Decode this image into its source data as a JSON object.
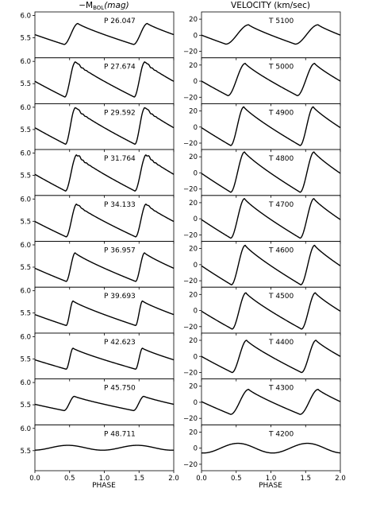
{
  "chart_data": {
    "type": "line",
    "x_label": "PHASE",
    "x_ticks": [
      0.0,
      0.5,
      1.0,
      1.5,
      2.0
    ],
    "x_tick_labels": [
      "0.0",
      "0.5",
      "1.0",
      "1.5",
      "2.0"
    ],
    "xlim": [
      0.0,
      2.0
    ],
    "columns": [
      {
        "title_prefix": "−M",
        "title_sub": "BOL",
        "title_suffix": "(mag)",
        "ylim": [
          5.05,
          6.08
        ],
        "y_ticks": [
          5.5,
          6.0
        ],
        "y_tick_labels": [
          "5.5",
          "6.0"
        ]
      },
      {
        "title": "VELOCITY (km/sec)",
        "ylim": [
          -28,
          29
        ],
        "y_ticks": [
          -20,
          0,
          20
        ],
        "y_tick_labels": [
          "−20",
          "0",
          "20"
        ]
      }
    ],
    "rows": [
      {
        "period_label": "P 26.047",
        "temp_label": "T 5100",
        "mag": {
          "base": 5.52,
          "min": 5.35,
          "max": 5.82,
          "rise": [
            0.42,
            0.62
          ],
          "bump": 0.0,
          "noise": 0.0
        },
        "vel": {
          "min": -11,
          "max": 13,
          "rise": [
            0.35,
            0.68
          ]
        }
      },
      {
        "period_label": "P 27.674",
        "temp_label": "T 5000",
        "mag": {
          "base": 5.55,
          "min": 5.2,
          "max": 5.98,
          "rise": [
            0.43,
            0.58
          ],
          "bump": 0.03,
          "noise": 0.01
        },
        "vel": {
          "min": -18,
          "max": 22,
          "rise": [
            0.38,
            0.63
          ]
        }
      },
      {
        "period_label": "P 29.592",
        "temp_label": "T 4900",
        "mag": {
          "base": 5.55,
          "min": 5.17,
          "max": 5.98,
          "rise": [
            0.44,
            0.58
          ],
          "bump": 0.04,
          "noise": 0.01
        },
        "vel": {
          "min": -23,
          "max": 25,
          "rise": [
            0.42,
            0.61
          ]
        }
      },
      {
        "period_label": "P 31.764",
        "temp_label": "T 4800",
        "mag": {
          "base": 5.55,
          "min": 5.15,
          "max": 5.95,
          "rise": [
            0.44,
            0.6
          ],
          "bump": 0.04,
          "noise": 0.012
        },
        "vel": {
          "min": -24,
          "max": 26,
          "rise": [
            0.42,
            0.62
          ]
        }
      },
      {
        "period_label": "P 34.133",
        "temp_label": "T 4700",
        "mag": {
          "base": 5.58,
          "min": 5.15,
          "max": 5.88,
          "rise": [
            0.45,
            0.6
          ],
          "bump": 0.02,
          "noise": 0.005
        },
        "vel": {
          "min": -24,
          "max": 25,
          "rise": [
            0.42,
            0.62
          ]
        }
      },
      {
        "period_label": "P 36.957",
        "temp_label": "T 4600",
        "mag": {
          "base": 5.58,
          "min": 5.18,
          "max": 5.82,
          "rise": [
            0.45,
            0.58
          ],
          "bump": 0.0,
          "noise": 0.0
        },
        "vel": {
          "min": -25,
          "max": 24,
          "rise": [
            0.43,
            0.63
          ]
        }
      },
      {
        "period_label": "P 39.693",
        "temp_label": "T 4500",
        "mag": {
          "base": 5.6,
          "min": 5.22,
          "max": 5.77,
          "rise": [
            0.45,
            0.55
          ],
          "bump": 0.0,
          "noise": 0.0
        },
        "vel": {
          "min": -23,
          "max": 22,
          "rise": [
            0.44,
            0.64
          ]
        }
      },
      {
        "period_label": "P 42.623",
        "temp_label": "T 4400",
        "mag": {
          "base": 5.6,
          "min": 5.27,
          "max": 5.74,
          "rise": [
            0.45,
            0.55
          ],
          "bump": 0.0,
          "noise": 0.0
        },
        "vel": {
          "min": -20,
          "max": 20,
          "rise": [
            0.44,
            0.65
          ]
        }
      },
      {
        "period_label": "P 45.750",
        "temp_label": "T 4300",
        "mag": {
          "base": 5.6,
          "min": 5.37,
          "max": 5.69,
          "rise": [
            0.42,
            0.57
          ],
          "bump": 0.0,
          "noise": 0.0
        },
        "vel": {
          "min": -15,
          "max": 16,
          "rise": [
            0.42,
            0.68
          ]
        }
      },
      {
        "period_label": "P 48.711",
        "temp_label": "T 4200",
        "mag": {
          "base": 5.57,
          "min": 5.51,
          "max": 5.62,
          "rise": [
            0.2,
            0.65
          ],
          "bump": 0.0,
          "noise": 0.0,
          "smooth": true
        },
        "vel": {
          "min": -6,
          "max": 6,
          "rise": [
            0.25,
            0.7
          ],
          "smooth": true
        }
      }
    ]
  }
}
